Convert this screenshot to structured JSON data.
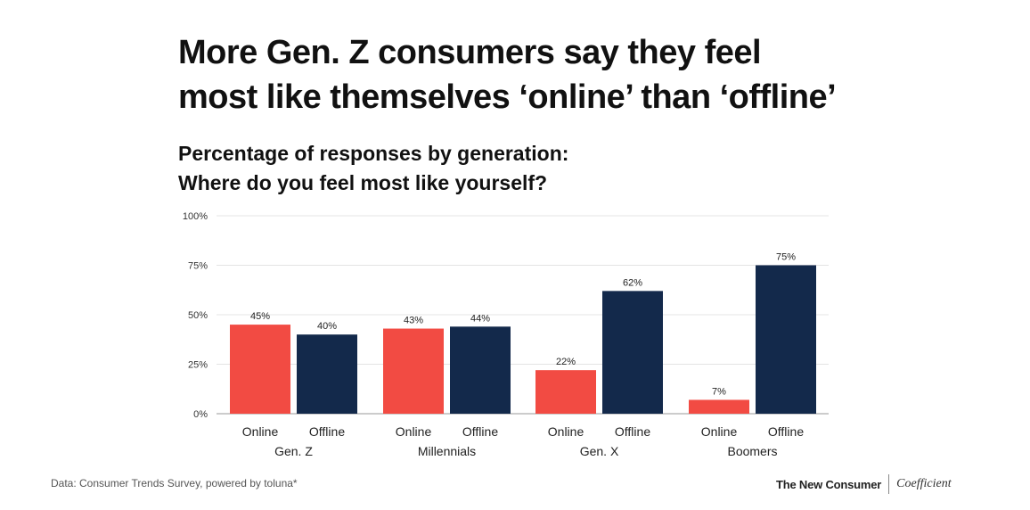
{
  "title": {
    "line1": "More Gen. Z consumers say they feel",
    "line2": "most like themselves ‘online’ than ‘offline’"
  },
  "subtitle": {
    "line1": "Percentage of responses by generation:",
    "line2": "Where do you feel most like yourself?"
  },
  "chart_data": {
    "type": "bar",
    "title": "Percentage of responses by generation: Where do you feel most like yourself?",
    "xlabel": "",
    "ylabel": "",
    "ylim": [
      0,
      100
    ],
    "yticks": [
      0,
      25,
      50,
      75,
      100
    ],
    "ytick_labels": [
      "0%",
      "25%",
      "50%",
      "75%",
      "100%"
    ],
    "groups": [
      "Gen. Z",
      "Millennials",
      "Gen. X",
      "Boomers"
    ],
    "series": [
      {
        "name": "Online",
        "color": "#f24b43",
        "values": [
          45,
          43,
          22,
          7
        ]
      },
      {
        "name": "Offline",
        "color": "#13294b",
        "values": [
          40,
          44,
          62,
          75
        ]
      }
    ],
    "value_labels": {
      "Online": [
        "45%",
        "43%",
        "22%",
        "7%"
      ],
      "Offline": [
        "40%",
        "44%",
        "62%",
        "75%"
      ]
    },
    "grid": true
  },
  "footer": {
    "source": "Data: Consumer Trends Survey, powered by toluna*",
    "brand_primary": "The New Consumer",
    "brand_secondary": "Coefficient"
  }
}
